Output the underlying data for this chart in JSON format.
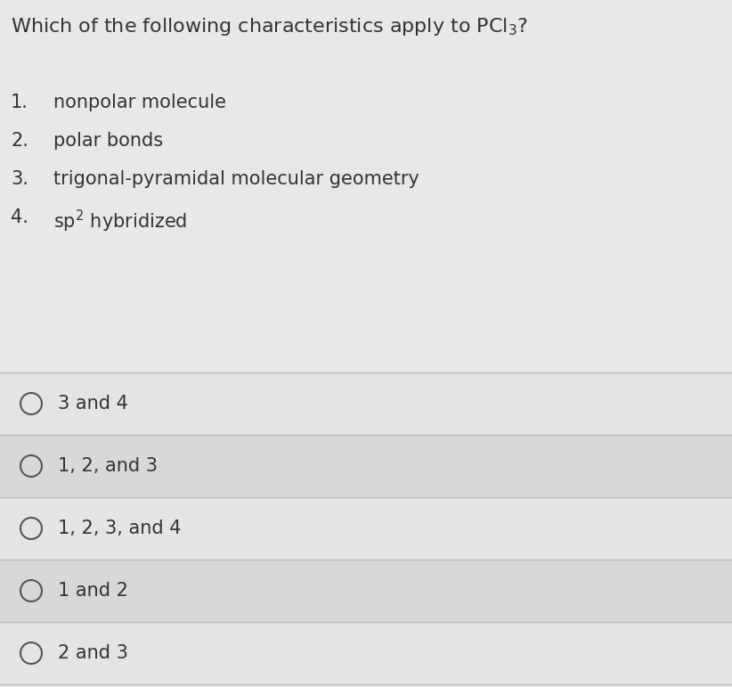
{
  "title": "Which of the following characteristics apply to PCl$_3$?",
  "title_fontsize": 16,
  "numbered_items": [
    "nonpolar molecule",
    "polar bonds",
    "trigonal-pyramidal molecular geometry",
    "sp$^2$ hybridized"
  ],
  "choices": [
    "3 and 4",
    "1, 2, and 3",
    "1, 2, 3, and 4",
    "1 and 2",
    "2 and 3"
  ],
  "bg_color": "#e8e8e8",
  "top_bg_color": "#e0e0e0",
  "choice_bg_light": "#e4e4e4",
  "choice_bg_dark": "#d8d8d8",
  "divider_color": "#bbbbbb",
  "text_color": "#333333",
  "circle_color": "#555555",
  "font_size_title": 16,
  "font_size_items": 15,
  "font_size_choices": 15
}
